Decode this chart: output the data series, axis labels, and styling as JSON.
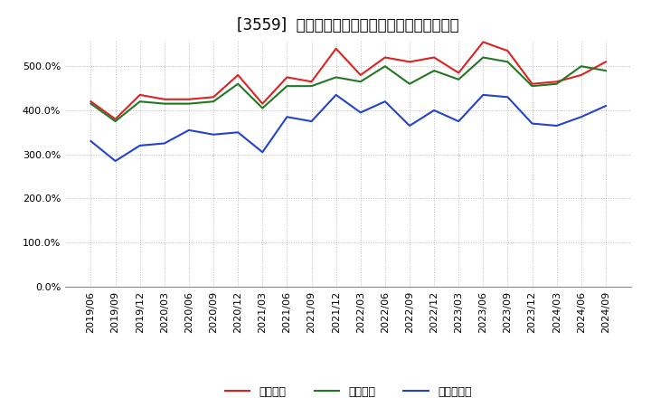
{
  "title": "[3559]  流動比率、当座比率、現顔金比率の推移",
  "x_labels": [
    "2019/06",
    "2019/09",
    "2019/12",
    "2020/03",
    "2020/06",
    "2020/09",
    "2020/12",
    "2021/03",
    "2021/06",
    "2021/09",
    "2021/12",
    "2022/03",
    "2022/06",
    "2022/09",
    "2022/12",
    "2023/03",
    "2023/06",
    "2023/09",
    "2023/12",
    "2024/03",
    "2024/06",
    "2024/09"
  ],
  "ryudo": [
    420,
    380,
    435,
    425,
    425,
    430,
    480,
    415,
    475,
    465,
    540,
    480,
    520,
    510,
    520,
    485,
    555,
    535,
    460,
    465,
    480,
    510
  ],
  "toza": [
    415,
    375,
    420,
    415,
    415,
    420,
    460,
    405,
    455,
    455,
    475,
    465,
    500,
    460,
    490,
    470,
    520,
    510,
    455,
    460,
    500,
    490
  ],
  "genyo": [
    330,
    285,
    320,
    325,
    355,
    345,
    350,
    305,
    385,
    375,
    435,
    395,
    420,
    365,
    400,
    375,
    435,
    430,
    370,
    365,
    385,
    410
  ],
  "ryudo_color": "#dd2222",
  "toza_color": "#227722",
  "genyo_color": "#2244cc",
  "background_color": "#ffffff",
  "grid_color": "#bbbbbb",
  "ylim": [
    0,
    560
  ],
  "yticks": [
    0,
    100,
    200,
    300,
    400,
    500
  ],
  "legend_label_ryudo": "流動比率",
  "legend_label_toza": "当座比率",
  "legend_label_genyo": "現顔金比率",
  "title_fontsize": 12,
  "tick_fontsize": 8,
  "legend_fontsize": 9
}
